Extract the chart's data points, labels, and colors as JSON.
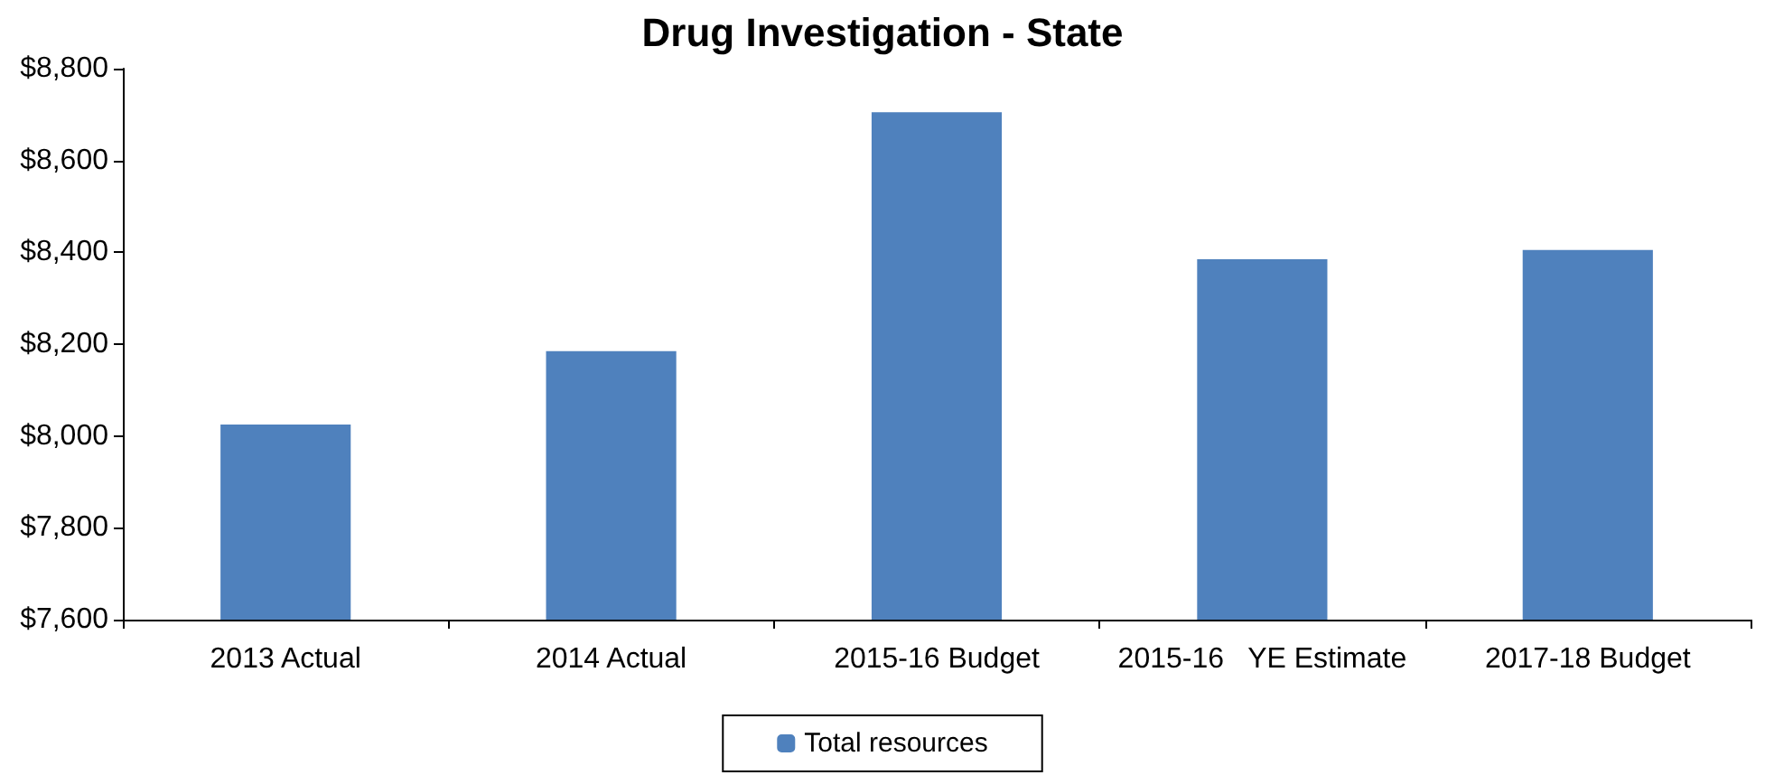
{
  "chart_data": {
    "type": "bar",
    "title": "Drug Investigation - State",
    "categories": [
      "2013 Actual",
      "2014 Actual",
      "2015-16 Budget",
      "2015-16   YE Estimate",
      "2017-18 Budget"
    ],
    "series": [
      {
        "name": "Total resources",
        "color": "#4f81bd",
        "values": [
          8025,
          8185,
          8705,
          8385,
          8405
        ]
      }
    ],
    "ylim": [
      7600,
      8800
    ],
    "yticks": [
      {
        "value": 7600,
        "label": "$7,600"
      },
      {
        "value": 7800,
        "label": "$7,800"
      },
      {
        "value": 8000,
        "label": "$8,000"
      },
      {
        "value": 8200,
        "label": "$8,200"
      },
      {
        "value": 8400,
        "label": "$8,400"
      },
      {
        "value": 8600,
        "label": "$8,600"
      },
      {
        "value": 8800,
        "label": "$8,800"
      }
    ],
    "grid": false,
    "legend": "bottom"
  }
}
